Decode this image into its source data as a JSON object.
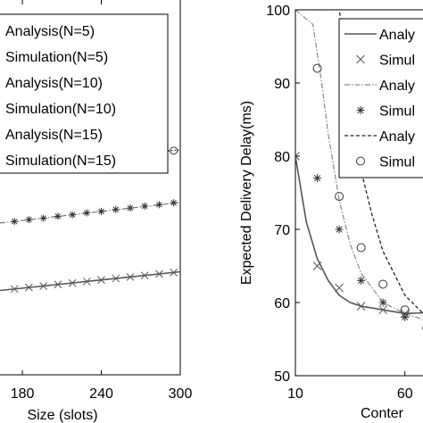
{
  "chart_data": [
    {
      "type": "line",
      "xlabel": "Size (slots)",
      "ylabel": "",
      "x_ticks": [
        "180",
        "240",
        "300"
      ],
      "xlim": [
        163,
        300
      ],
      "ylim": [
        0,
        1
      ],
      "legend": {
        "placement": "top-left",
        "entries": [
          {
            "label": "Analysis(N=5)",
            "style": "solid"
          },
          {
            "label": "Simulation(N=5)",
            "marker": "x"
          },
          {
            "label": "Analysis(N=10)",
            "style": "dash-dot"
          },
          {
            "label": "Simulation(N=10)",
            "marker": "asterisk"
          },
          {
            "label": "Analysis(N=15)",
            "style": "dotted"
          },
          {
            "label": "Simulation(N=15)",
            "marker": "circle"
          }
        ]
      },
      "series": [
        {
          "name": "Analysis(N=15)",
          "x": [
            163,
            300
          ],
          "y": [
            0.565,
            0.6
          ]
        },
        {
          "name": "Simulation(N=15)",
          "marker": "circle",
          "x": [
            174,
            185,
            196,
            207,
            218,
            229,
            240,
            251,
            262,
            273,
            284,
            295
          ],
          "y": [
            0.568,
            0.571,
            0.573,
            0.576,
            0.578,
            0.581,
            0.584,
            0.587,
            0.59,
            0.592,
            0.595,
            0.598
          ]
        },
        {
          "name": "Analysis(N=10)",
          "x": [
            163,
            300
          ],
          "y": [
            0.405,
            0.46
          ]
        },
        {
          "name": "Simulation(N=10)",
          "marker": "asterisk",
          "x": [
            174,
            185,
            196,
            207,
            218,
            229,
            240,
            251,
            262,
            273,
            284,
            295
          ],
          "y": [
            0.409,
            0.414,
            0.418,
            0.423,
            0.427,
            0.432,
            0.436,
            0.441,
            0.445,
            0.45,
            0.454,
            0.459
          ]
        },
        {
          "name": "Analysis(N=5)",
          "x": [
            163,
            300
          ],
          "y": [
            0.225,
            0.275
          ]
        },
        {
          "name": "Simulation(N=5)",
          "marker": "x",
          "x": [
            174,
            185,
            196,
            207,
            218,
            229,
            240,
            251,
            262,
            273,
            284,
            295
          ],
          "y": [
            0.229,
            0.233,
            0.237,
            0.241,
            0.245,
            0.249,
            0.253,
            0.257,
            0.261,
            0.265,
            0.269,
            0.273
          ]
        }
      ]
    },
    {
      "type": "line",
      "xlabel": "Conter",
      "ylabel": "Expected Delivery Delay(ms)",
      "x_ticks": [
        "10",
        "60"
      ],
      "y_ticks": [
        "50",
        "60",
        "70",
        "80",
        "90",
        "100"
      ],
      "xlim": [
        10,
        120
      ],
      "ylim": [
        50,
        100
      ],
      "legend": {
        "placement": "top-right",
        "entries": [
          {
            "label": "Analy",
            "style": "solid"
          },
          {
            "label": "Simul",
            "marker": "x"
          },
          {
            "label": "Analy",
            "style": "dash-dot"
          },
          {
            "label": "Simul",
            "marker": "asterisk"
          },
          {
            "label": "Analy",
            "style": "dashed"
          },
          {
            "label": "Simul",
            "marker": "circle"
          }
        ]
      },
      "series": [
        {
          "name": "Analysis(N=5)",
          "x": [
            10,
            15,
            20,
            25,
            30,
            35,
            40,
            50,
            60,
            70,
            80,
            90,
            100,
            110,
            120
          ],
          "y": [
            80,
            71,
            66,
            63,
            61,
            60,
            59.5,
            59,
            58.5,
            58.6,
            59,
            60,
            61,
            62.5,
            64
          ]
        },
        {
          "name": "Simulation(N=5)",
          "marker": "x",
          "x": [
            10,
            20,
            30,
            40,
            50,
            60,
            70,
            80,
            90
          ],
          "y": [
            80,
            65,
            62,
            59.5,
            59,
            58.5,
            58.5,
            59,
            60
          ]
        },
        {
          "name": "Analysis(N=10)",
          "x": [
            10,
            18,
            22,
            25,
            30,
            35,
            40,
            50,
            60,
            70,
            80,
            90,
            100
          ],
          "y": [
            100,
            98,
            90,
            83,
            74,
            68,
            64,
            60,
            58.5,
            57.5,
            56.5,
            56.2,
            56
          ]
        },
        {
          "name": "Simulation(N=10)",
          "marker": "asterisk",
          "x": [
            20,
            30,
            40,
            50,
            60,
            70,
            80,
            90
          ],
          "y": [
            77,
            70,
            63,
            60,
            58,
            57,
            56,
            55.5
          ]
        },
        {
          "name": "Analysis(N=15)",
          "x": [
            10,
            30,
            33,
            36,
            40,
            45,
            50,
            60,
            70,
            80,
            90,
            100
          ],
          "y": [
            100,
            100,
            94,
            86,
            78,
            72,
            67,
            61,
            58,
            56.5,
            55.8,
            55.5
          ]
        },
        {
          "name": "Simulation(N=15)",
          "marker": "circle",
          "x": [
            20,
            30,
            40,
            50,
            60,
            70,
            80,
            90
          ],
          "y": [
            92,
            74.5,
            67.5,
            62.5,
            59,
            56.5,
            55.5,
            55.5
          ]
        }
      ]
    }
  ]
}
